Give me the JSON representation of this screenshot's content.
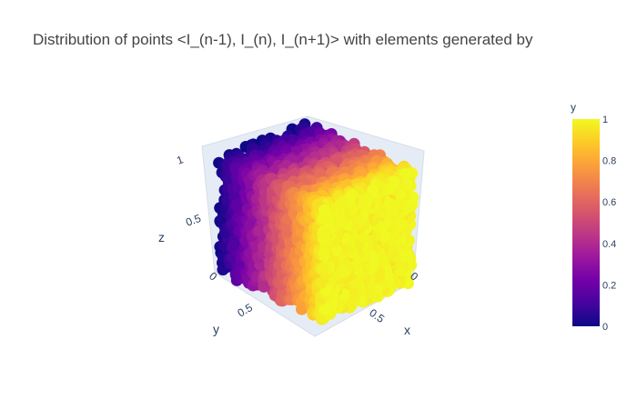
{
  "chart_data": {
    "type": "scatter3d",
    "title": "Distribution of points <I_(n-1), I_(n), I_(n+1)> with elements generated by",
    "axes": {
      "x": {
        "label": "x",
        "ticks": [
          "0",
          "0.5"
        ],
        "range": [
          0,
          1
        ]
      },
      "y": {
        "label": "y",
        "ticks": [
          "0",
          "0.5"
        ],
        "range": [
          0,
          1
        ]
      },
      "z": {
        "label": "z",
        "ticks": [
          "0.5",
          "1"
        ],
        "range": [
          0,
          1
        ]
      }
    },
    "color": {
      "by": "y",
      "colorscale": "plasma",
      "colorbar": {
        "title": "y",
        "ticks": [
          "0",
          "0.2",
          "0.4",
          "0.6",
          "0.8",
          "1"
        ],
        "range": [
          0,
          1
        ]
      },
      "colorscale_stops": [
        "#0d0887",
        "#46039f",
        "#7201a8",
        "#9c179e",
        "#bd3786",
        "#d8576b",
        "#ed7953",
        "#fb9f3a",
        "#fdca26",
        "#f0f921"
      ]
    },
    "points": {
      "distribution": "uniform",
      "x_range": [
        0,
        1
      ],
      "y_range": [
        0,
        1
      ],
      "z_range": [
        0,
        1
      ]
    }
  }
}
